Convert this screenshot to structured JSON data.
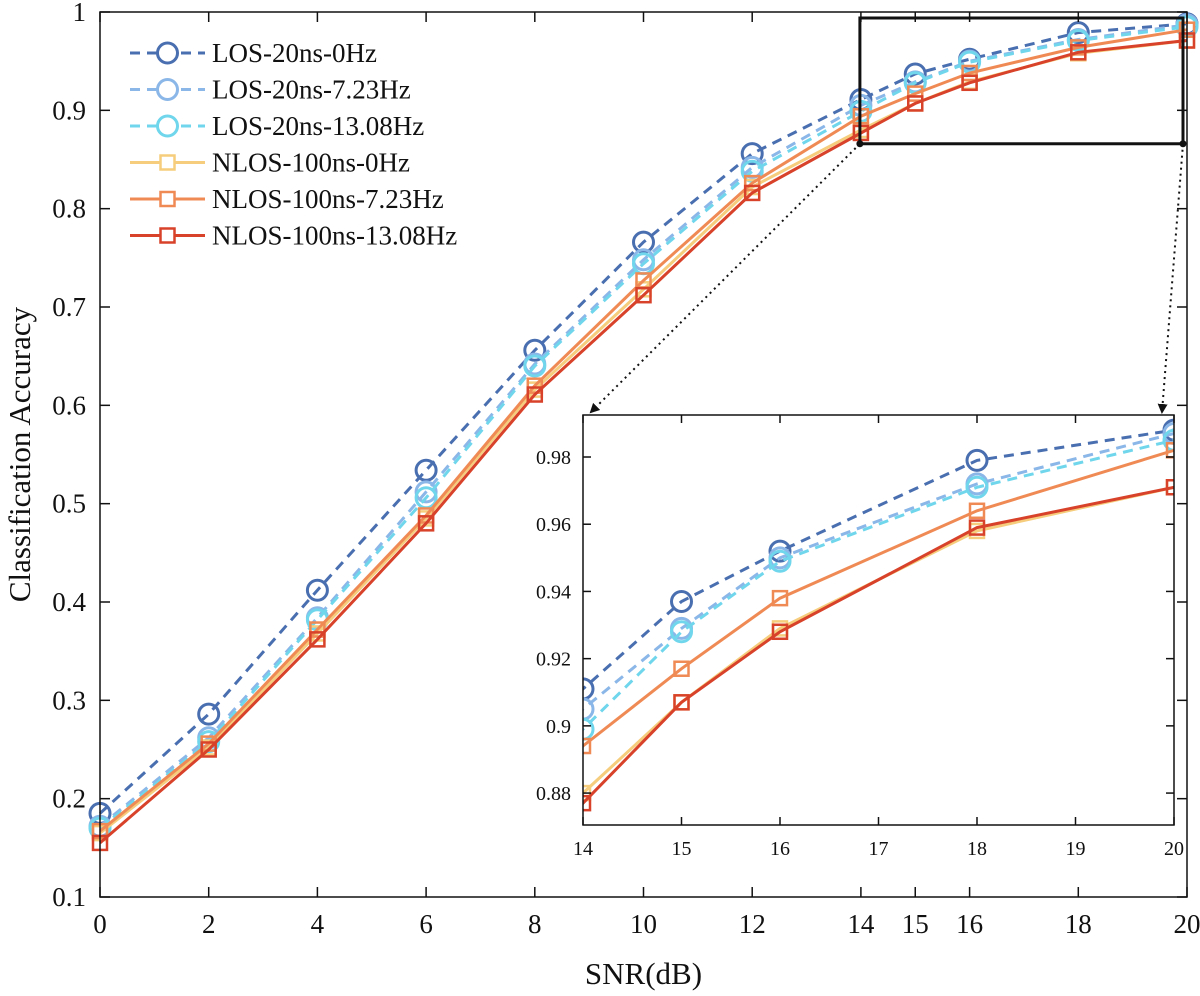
{
  "chart_data": {
    "type": "line",
    "title": "",
    "xlabel": "SNR(dB)",
    "ylabel": "Classification Accuracy",
    "xlim": [
      0,
      20
    ],
    "ylim": [
      0.1,
      1
    ],
    "xticks": [
      0,
      2,
      4,
      6,
      8,
      10,
      12,
      14,
      15,
      16,
      18,
      20
    ],
    "yticks": [
      0.1,
      0.2,
      0.3,
      0.4,
      0.5,
      0.6,
      0.7,
      0.8,
      0.9,
      1
    ],
    "ytick_labels": [
      "0.1",
      "0.2",
      "0.3",
      "0.4",
      "0.5",
      "0.6",
      "0.7",
      "0.8",
      "0.9",
      "1"
    ],
    "legend_position": "top-left",
    "x": [
      0,
      2,
      4,
      6,
      8,
      10,
      12,
      14,
      15,
      16,
      18,
      20
    ],
    "series": [
      {
        "name": "LOS-20ns-0Hz",
        "color": "#4a6fb0",
        "dash": true,
        "marker": "circle",
        "values": [
          0.185,
          0.286,
          0.412,
          0.534,
          0.656,
          0.766,
          0.856,
          0.911,
          0.937,
          0.952,
          0.979,
          0.988
        ]
      },
      {
        "name": "LOS-20ns-7.23Hz",
        "color": "#8ab6e8",
        "dash": true,
        "marker": "circle",
        "values": [
          0.172,
          0.262,
          0.384,
          0.512,
          0.642,
          0.748,
          0.842,
          0.905,
          0.929,
          0.95,
          0.972,
          0.987
        ]
      },
      {
        "name": "LOS-20ns-13.08Hz",
        "color": "#6fd6ec",
        "dash": true,
        "marker": "circle",
        "values": [
          0.17,
          0.258,
          0.382,
          0.506,
          0.64,
          0.744,
          0.838,
          0.899,
          0.928,
          0.949,
          0.971,
          0.985
        ]
      },
      {
        "name": "NLOS-100ns-0Hz",
        "color": "#f5cd7c",
        "dash": false,
        "marker": "square",
        "values": [
          0.165,
          0.252,
          0.368,
          0.485,
          0.616,
          0.718,
          0.822,
          0.88,
          0.907,
          0.929,
          0.958,
          0.971
        ]
      },
      {
        "name": "NLOS-100ns-7.23Hz",
        "color": "#f08a55",
        "dash": false,
        "marker": "square",
        "values": [
          0.167,
          0.256,
          0.372,
          0.488,
          0.62,
          0.727,
          0.826,
          0.894,
          0.917,
          0.938,
          0.964,
          0.982
        ]
      },
      {
        "name": "NLOS-100ns-13.08Hz",
        "color": "#d8422a",
        "dash": false,
        "marker": "square",
        "values": [
          0.155,
          0.25,
          0.362,
          0.48,
          0.611,
          0.712,
          0.816,
          0.877,
          0.907,
          0.928,
          0.959,
          0.971
        ]
      }
    ],
    "inset": {
      "xlim": [
        14,
        20
      ],
      "ylim": [
        0.8705,
        0.9925
      ],
      "xticks": [
        14,
        15,
        16,
        17,
        18,
        19,
        20
      ],
      "yticks": [
        0.88,
        0.9,
        0.92,
        0.94,
        0.96,
        0.98
      ],
      "ytick_labels": [
        "0.88",
        "0.9",
        "0.92",
        "0.94",
        "0.96",
        "0.98"
      ],
      "x": [
        14,
        15,
        16,
        18,
        20
      ]
    },
    "zoom_box": {
      "xlim": [
        14,
        20
      ],
      "ylim": [
        0.866,
        1
      ]
    }
  }
}
